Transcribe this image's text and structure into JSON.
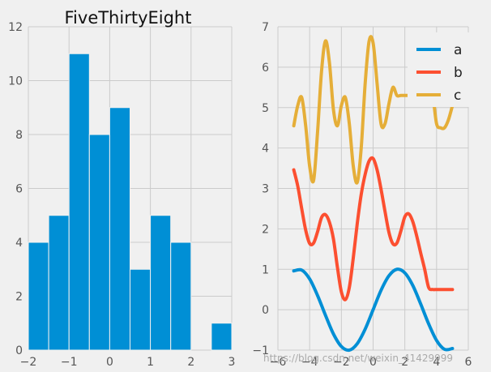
{
  "chart_data": [
    {
      "type": "bar",
      "title": "FiveThirtyEight",
      "bin_edges": [
        -2.0,
        -1.5,
        -1.0,
        -0.5,
        0.0,
        0.5,
        1.0,
        1.5,
        2.0,
        2.5,
        3.0
      ],
      "values": [
        4,
        5,
        11,
        8,
        9,
        3,
        5,
        4,
        0,
        1
      ],
      "xlim": [
        -2,
        3
      ],
      "ylim": [
        0,
        12
      ],
      "xticks": [
        "−2",
        "−1",
        "0",
        "1",
        "2",
        "3"
      ],
      "yticks": [
        "0",
        "2",
        "4",
        "6",
        "8",
        "10",
        "12"
      ],
      "color": "#008fd5",
      "grid": true
    },
    {
      "type": "line",
      "xlim": [
        -6,
        6
      ],
      "ylim": [
        -1,
        7
      ],
      "xticks": [
        "−6",
        "−4",
        "−2",
        "0",
        "2",
        "4",
        "6"
      ],
      "yticks": [
        "−1",
        "0",
        "1",
        "2",
        "3",
        "4",
        "5",
        "6",
        "7"
      ],
      "legend_position": "top-right",
      "grid": true,
      "series": [
        {
          "name": "a",
          "color": "#008fd5",
          "x": [
            -5.0,
            -4.5,
            -4.0,
            -3.5,
            -3.0,
            -2.5,
            -2.0,
            -1.5,
            -1.0,
            -0.5,
            0.0,
            0.5,
            1.0,
            1.5,
            2.0,
            2.5,
            3.0,
            3.5,
            4.0,
            4.5,
            5.0
          ],
          "y": [
            0.96,
            0.98,
            0.76,
            0.35,
            -0.14,
            -0.6,
            -0.91,
            -1.0,
            -0.84,
            -0.48,
            0.0,
            0.48,
            0.84,
            1.0,
            0.91,
            0.6,
            0.14,
            -0.35,
            -0.76,
            -0.98,
            -0.96
          ]
        },
        {
          "name": "b",
          "color": "#fc4f30",
          "x": [
            -5.0,
            -4.75,
            -4.5,
            -4.25,
            -4.0,
            -3.75,
            -3.5,
            -3.25,
            -3.0,
            -2.75,
            -2.5,
            -2.25,
            -2.0,
            -1.75,
            -1.5,
            -1.25,
            -1.0,
            -0.75,
            -0.5,
            -0.25,
            0.0,
            0.25,
            0.5,
            0.75,
            1.0,
            1.25,
            1.5,
            1.75,
            2.0,
            2.25,
            2.5,
            2.75,
            3.0,
            3.25,
            3.5,
            3.75,
            4.0,
            4.25,
            4.5,
            4.75,
            5.0
          ],
          "y": [
            3.46,
            3.06,
            2.5,
            1.97,
            1.64,
            1.65,
            1.93,
            2.28,
            2.35,
            2.16,
            1.75,
            1.05,
            0.44,
            0.25,
            0.55,
            1.28,
            2.13,
            2.85,
            3.35,
            3.68,
            3.74,
            3.46,
            2.98,
            2.43,
            1.91,
            1.63,
            1.65,
            1.95,
            2.3,
            2.37,
            2.18,
            1.82,
            1.4,
            1.0,
            0.55,
            0.5,
            0.5,
            0.5,
            0.5,
            0.5,
            0.5
          ]
        },
        {
          "name": "c",
          "color": "#e5ae38",
          "x": [
            -5.0,
            -4.75,
            -4.5,
            -4.25,
            -4.0,
            -3.75,
            -3.5,
            -3.25,
            -3.0,
            -2.75,
            -2.5,
            -2.25,
            -2.0,
            -1.75,
            -1.5,
            -1.25,
            -1.0,
            -0.75,
            -0.5,
            -0.25,
            0.0,
            0.25,
            0.5,
            0.75,
            1.0,
            1.25,
            1.5,
            1.75,
            2.0,
            2.25,
            2.5,
            2.75,
            3.0,
            3.25,
            3.5,
            3.75,
            4.0,
            4.25,
            4.5,
            4.75,
            5.0
          ],
          "y": [
            4.55,
            5.05,
            5.25,
            4.55,
            3.55,
            3.2,
            4.4,
            5.9,
            6.65,
            6.1,
            4.95,
            4.55,
            5.05,
            5.25,
            4.6,
            3.55,
            3.15,
            4.0,
            5.6,
            6.65,
            6.6,
            5.6,
            4.6,
            4.6,
            5.1,
            5.5,
            5.3,
            5.3,
            5.3,
            5.3,
            5.3,
            5.3,
            5.3,
            5.3,
            5.3,
            5.3,
            4.6,
            4.5,
            4.5,
            4.7,
            5.05
          ]
        }
      ]
    }
  ],
  "watermark": "https://blog.csdn.net/weixin_41429999"
}
